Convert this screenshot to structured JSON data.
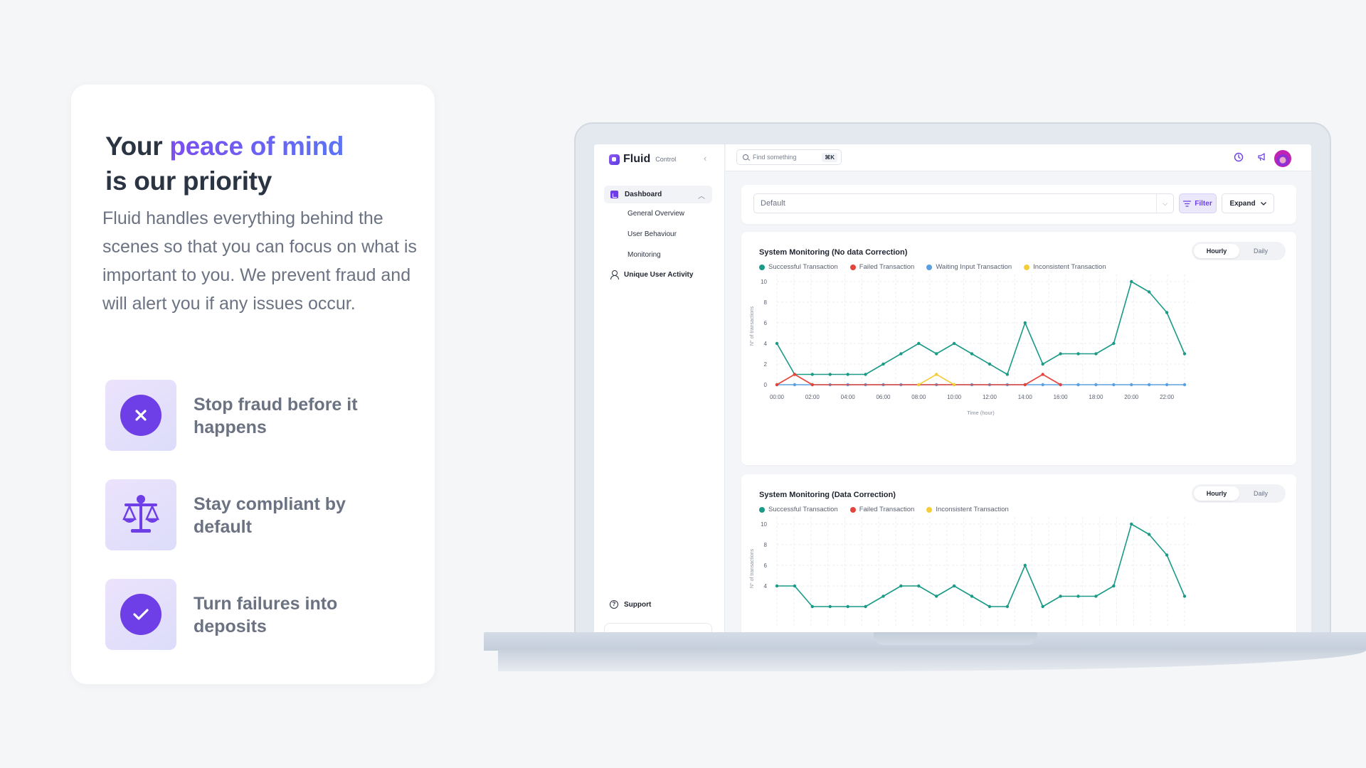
{
  "marketing": {
    "headline_part1": "Your ",
    "headline_accent": "peace of mind",
    "headline_part2": "is our priority",
    "intro": "Fluid handles everything behind the scenes so that you can focus on what is important to you. We prevent fraud and will alert you if any issues occur.",
    "features": [
      {
        "label": "Stop fraud before it happens",
        "icon": "x-icon"
      },
      {
        "label": "Stay compliant by default",
        "icon": "scale-icon"
      },
      {
        "label": "Turn failures into deposits",
        "icon": "check-icon"
      }
    ]
  },
  "app": {
    "brand": "Fluid",
    "brand_sub": "Control",
    "search_placeholder": "Find something",
    "search_shortcut": "⌘K",
    "sidebar": {
      "dashboard": "Dashboard",
      "sub_items": [
        "General Overview",
        "User Behaviour",
        "Monitoring"
      ],
      "unique_user_activity": "Unique User Activity",
      "support": "Support"
    },
    "filter": {
      "selected": "Default",
      "filter_label": "Filter",
      "expand_label": "Expand"
    },
    "toggle": {
      "hourly": "Hourly",
      "daily": "Daily"
    },
    "colors": {
      "successful": "#1a9a87",
      "failed": "#e5443b",
      "waiting": "#5aa0e0",
      "inconsistent": "#f5cd3a",
      "accent": "#6e3fe6"
    }
  },
  "chart_data": [
    {
      "type": "line",
      "title": "System Monitoring (No data Correction)",
      "xlabel": "Time (hour)",
      "ylabel": "N° of transactions",
      "x_ticks": [
        "00:00",
        "02:00",
        "04:00",
        "06:00",
        "08:00",
        "10:00",
        "12:00",
        "14:00",
        "16:00",
        "18:00",
        "20:00",
        "22:00"
      ],
      "y_ticks": [
        "0",
        "2",
        "4",
        "6",
        "8",
        "10"
      ],
      "ylim": [
        0,
        10
      ],
      "series": [
        {
          "name": "Successful Transaction",
          "color": "#1a9a87",
          "x": [
            0,
            1,
            2,
            3,
            4,
            5,
            6,
            7,
            8,
            9,
            10,
            11,
            12,
            13,
            14,
            15,
            16,
            17,
            18,
            19,
            20,
            21,
            22,
            23
          ],
          "values": [
            4,
            1,
            1,
            1,
            1,
            1,
            2,
            3,
            4,
            3,
            4,
            3,
            2,
            1,
            6,
            2,
            3,
            3,
            3,
            4,
            10,
            9,
            7,
            3
          ]
        },
        {
          "name": "Failed Transaction",
          "color": "#e5443b",
          "x": [
            0,
            1,
            2,
            14,
            15,
            16
          ],
          "values": [
            0,
            1,
            0,
            0,
            1,
            0
          ]
        },
        {
          "name": "Waiting Input Transaction",
          "color": "#5aa0e0",
          "x": [
            0,
            1,
            2,
            3,
            4,
            5,
            6,
            7,
            8,
            9,
            10,
            11,
            12,
            13,
            14,
            15,
            16,
            17,
            18,
            19,
            20,
            21,
            22,
            23
          ],
          "values": [
            0,
            0,
            0,
            0,
            0,
            0,
            0,
            0,
            0,
            0,
            0,
            0,
            0,
            0,
            0,
            0,
            0,
            0,
            0,
            0,
            0,
            0,
            0,
            0
          ]
        },
        {
          "name": "Inconsistent Transaction",
          "color": "#f5cd3a",
          "x": [
            8,
            9,
            10
          ],
          "values": [
            0,
            1,
            0
          ]
        }
      ],
      "grid": true,
      "legend": "top-left"
    },
    {
      "type": "line",
      "title": "System Monitoring (Data Correction)",
      "ylabel": "N° of transactions",
      "y_ticks": [
        "4",
        "6",
        "8",
        "10"
      ],
      "ylim": [
        0,
        10
      ],
      "series": [
        {
          "name": "Successful Transaction",
          "color": "#1a9a87",
          "x": [
            0,
            1,
            2,
            3,
            4,
            5,
            6,
            7,
            8,
            9,
            10,
            11,
            12,
            13,
            14,
            15,
            16,
            17,
            18,
            19,
            20,
            21,
            22,
            23
          ],
          "values": [
            4,
            4,
            2,
            2,
            2,
            2,
            3,
            4,
            4,
            3,
            4,
            3,
            2,
            2,
            6,
            2,
            3,
            3,
            3,
            4,
            10,
            9,
            7,
            3
          ]
        }
      ],
      "legend_entries": [
        "Successful Transaction",
        "Failed Transaction",
        "Inconsistent Transaction"
      ],
      "grid": true,
      "legend": "top-left"
    }
  ]
}
